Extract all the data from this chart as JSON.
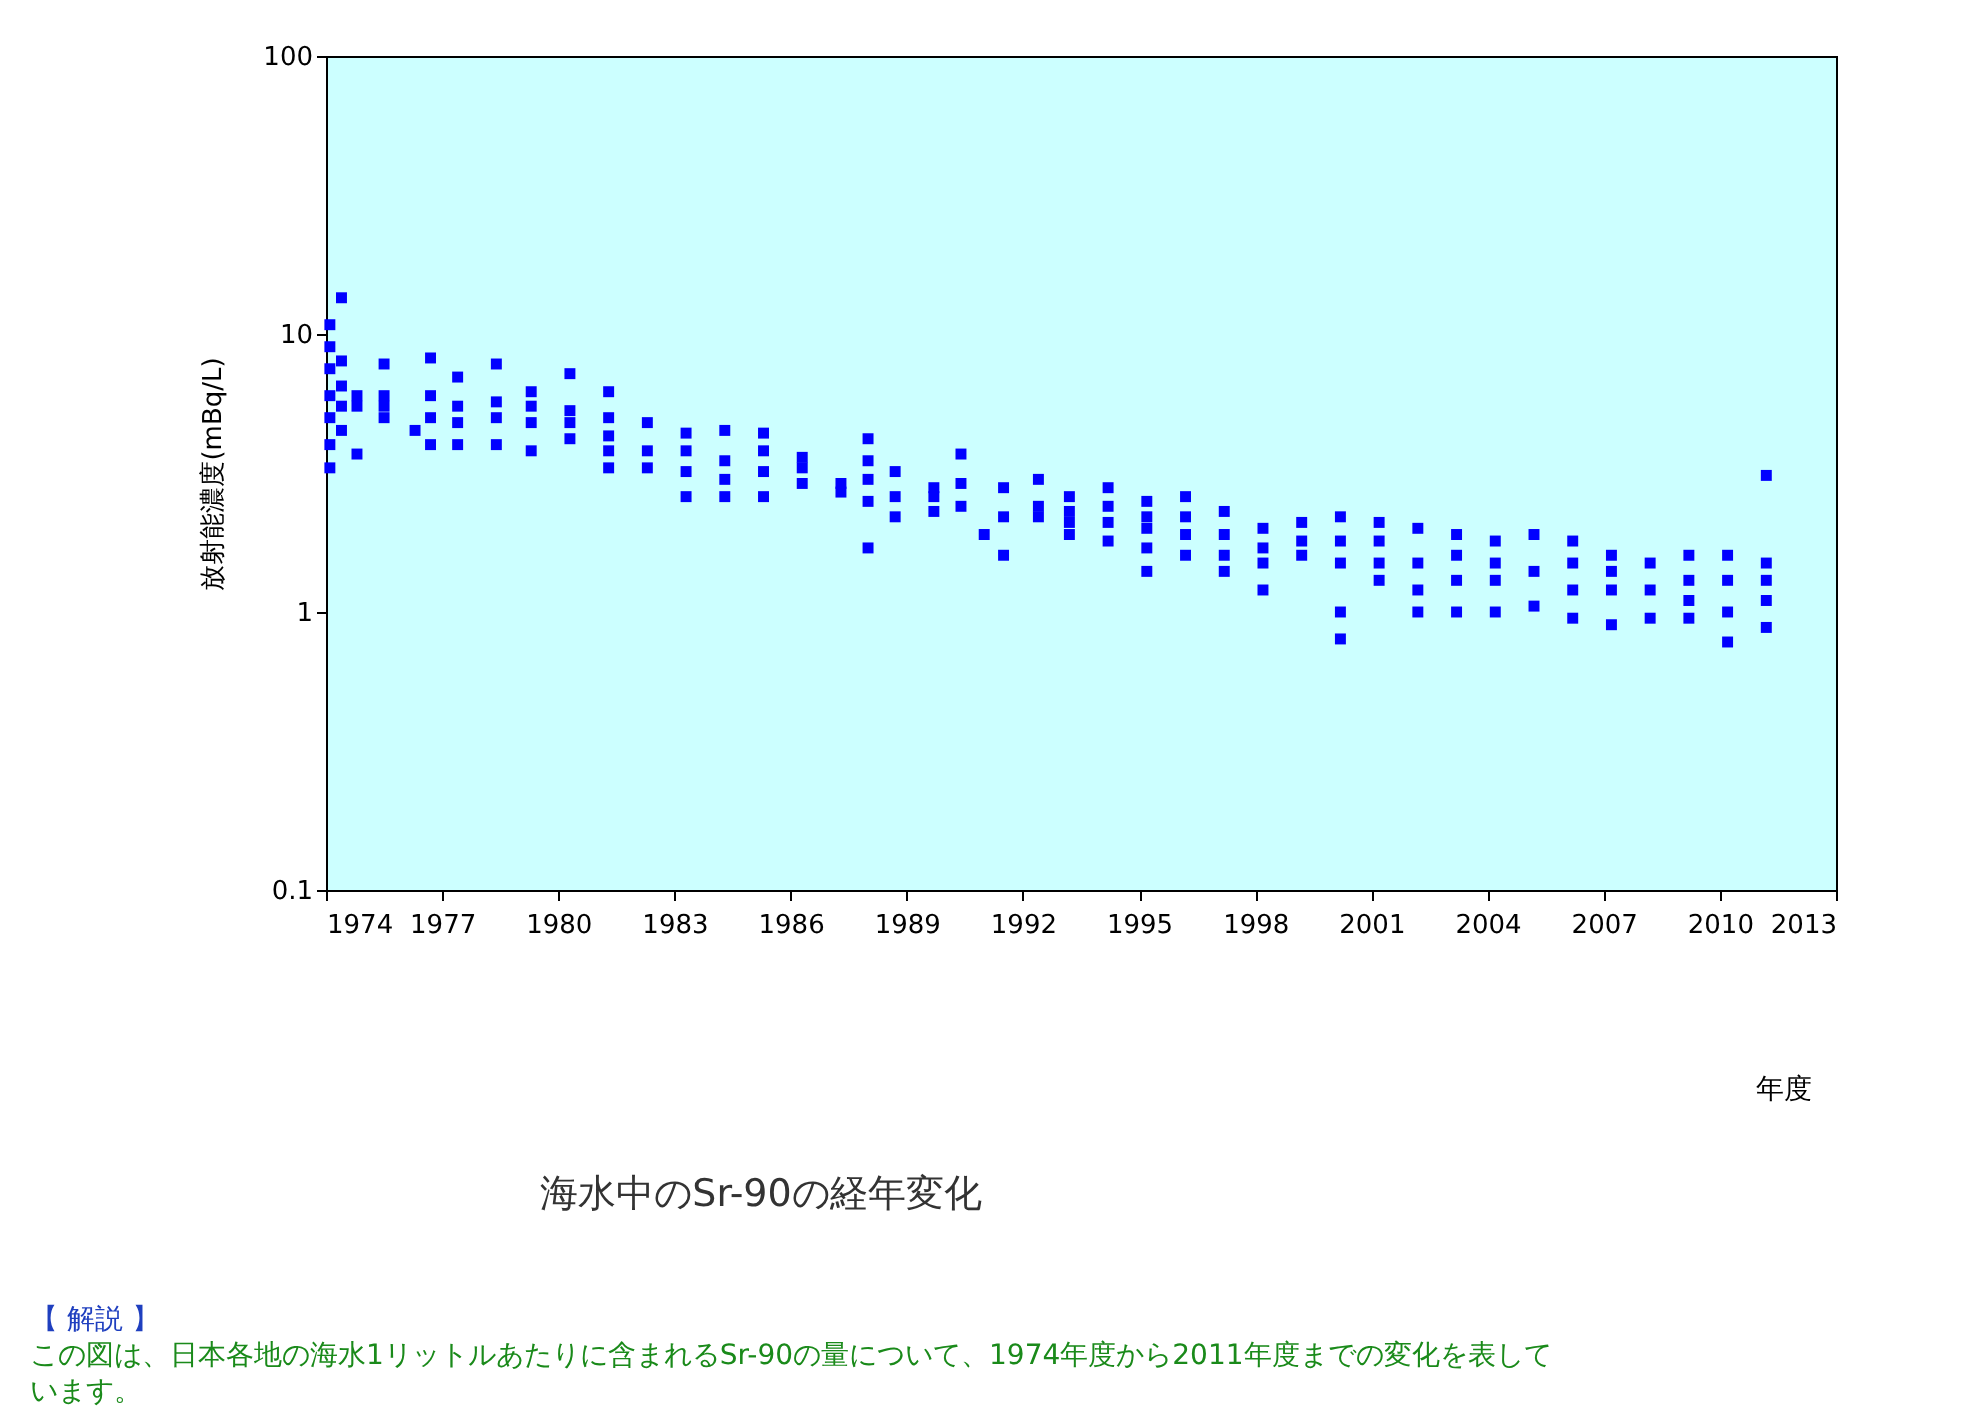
{
  "chart_data": {
    "type": "scatter",
    "title": "海水中のSr-90の経年変化",
    "xlabel": "年度",
    "ylabel": "放射能濃度(mBq/L)",
    "annotations": [
      "【 解説 】",
      "この図は、日本各地の海水1リットルあたりに含まれるSr-90の量について、1974年度から2011年度までの変化を表しています。"
    ],
    "x": [
      1974.1,
      1974.1,
      1974.1,
      1974.1,
      1974.1,
      1974.1,
      1974.1,
      1974.4,
      1974.4,
      1974.4,
      1974.4,
      1974.4,
      1974.8,
      1974.8,
      1974.8,
      1975.5,
      1975.5,
      1975.5,
      1975.5,
      1976.3,
      1976.7,
      1976.7,
      1976.7,
      1976.7,
      1977.4,
      1977.4,
      1977.4,
      1977.4,
      1978.4,
      1978.4,
      1978.4,
      1978.4,
      1979.3,
      1979.3,
      1979.3,
      1979.3,
      1980.3,
      1980.3,
      1980.3,
      1980.3,
      1981.3,
      1981.3,
      1981.3,
      1981.3,
      1981.3,
      1982.3,
      1982.3,
      1982.3,
      1983.3,
      1983.3,
      1983.3,
      1983.3,
      1984.3,
      1984.3,
      1984.3,
      1984.3,
      1985.3,
      1985.3,
      1985.3,
      1985.3,
      1986.3,
      1986.3,
      1986.3,
      1987.3,
      1987.3,
      1988.0,
      1988.0,
      1988.0,
      1988.0,
      1988.0,
      1988.7,
      1988.7,
      1988.7,
      1989.7,
      1989.7,
      1989.7,
      1990.4,
      1990.4,
      1990.4,
      1991.0,
      1991.5,
      1991.5,
      1991.5,
      1992.4,
      1992.4,
      1992.4,
      1993.2,
      1993.2,
      1993.2,
      1993.2,
      1994.2,
      1994.2,
      1994.2,
      1994.2,
      1995.2,
      1995.2,
      1995.2,
      1995.2,
      1995.2,
      1996.2,
      1996.2,
      1996.2,
      1996.2,
      1997.2,
      1997.2,
      1997.2,
      1997.2,
      1998.2,
      1998.2,
      1998.2,
      1998.2,
      1999.2,
      1999.2,
      1999.2,
      2000.2,
      2000.2,
      2000.2,
      2000.2,
      2000.2,
      2001.2,
      2001.2,
      2001.2,
      2001.2,
      2002.2,
      2002.2,
      2002.2,
      2002.2,
      2003.2,
      2003.2,
      2003.2,
      2003.2,
      2004.2,
      2004.2,
      2004.2,
      2004.2,
      2005.2,
      2005.2,
      2005.2,
      2006.2,
      2006.2,
      2006.2,
      2006.2,
      2007.2,
      2007.2,
      2007.2,
      2007.2,
      2008.2,
      2008.2,
      2008.2,
      2009.2,
      2009.2,
      2009.2,
      2009.2,
      2010.2,
      2010.2,
      2010.2,
      2010.2,
      2011.2,
      2011.2,
      2011.2,
      2011.2,
      2011.2
    ],
    "values": [
      3.3,
      4,
      5,
      6,
      7.5,
      9,
      10.8,
      13.5,
      8,
      6.5,
      5.5,
      4.5,
      3.7,
      5.5,
      6,
      7.8,
      5,
      5.5,
      6,
      4.5,
      8.2,
      4,
      5,
      6,
      4,
      4.8,
      5.5,
      7,
      7.8,
      4,
      5,
      5.7,
      4.8,
      5.5,
      6.2,
      3.8,
      7.2,
      4.2,
      4.8,
      5.3,
      6.2,
      3.3,
      3.8,
      4.3,
      5,
      4.8,
      3.3,
      3.8,
      4.4,
      2.6,
      3.2,
      3.8,
      4.5,
      2.6,
      3,
      3.5,
      4.4,
      2.6,
      3.2,
      3.8,
      3.6,
      2.9,
      3.3,
      2.9,
      2.7,
      4.2,
      1.7,
      2.5,
      3,
      3.5,
      3.2,
      2.2,
      2.6,
      2.8,
      2.3,
      2.6,
      3.7,
      2.4,
      2.9,
      1.9,
      2.8,
      2.2,
      1.6,
      3,
      2.4,
      2.2,
      2.6,
      1.9,
      2.1,
      2.3,
      2.8,
      1.8,
      2.1,
      2.4,
      2.5,
      1.4,
      1.7,
      2,
      2.2,
      2.6,
      1.6,
      1.9,
      2.2,
      2.3,
      1.4,
      1.6,
      1.9,
      2,
      1.2,
      1.5,
      1.7,
      2.1,
      1.6,
      1.8,
      2.2,
      0.8,
      1,
      1.5,
      1.8,
      2.1,
      1.3,
      1.5,
      1.8,
      2,
      1,
      1.2,
      1.5,
      1.9,
      1,
      1.3,
      1.6,
      1.8,
      1,
      1.3,
      1.5,
      1.9,
      1.05,
      1.4,
      1.8,
      0.95,
      1.2,
      1.5,
      1.6,
      0.9,
      1.2,
      1.4,
      1.5,
      0.95,
      1.2,
      1.6,
      0.95,
      1.1,
      1.3,
      1.6,
      0.78,
      1,
      1.3,
      3.1,
      0.88,
      1.1,
      1.3,
      1.5
    ],
    "color": "#0000ff",
    "marker": "square",
    "log": true,
    "grid": false,
    "xlim": [
      1974,
      2013
    ],
    "xticks": [
      1974,
      1977,
      1980,
      1983,
      1986,
      1989,
      1992,
      1995,
      1998,
      2001,
      2004,
      2007,
      2010,
      2013
    ],
    "ylim": [
      0.1,
      100
    ],
    "yticks": [
      0.1,
      1,
      10,
      100
    ]
  }
}
